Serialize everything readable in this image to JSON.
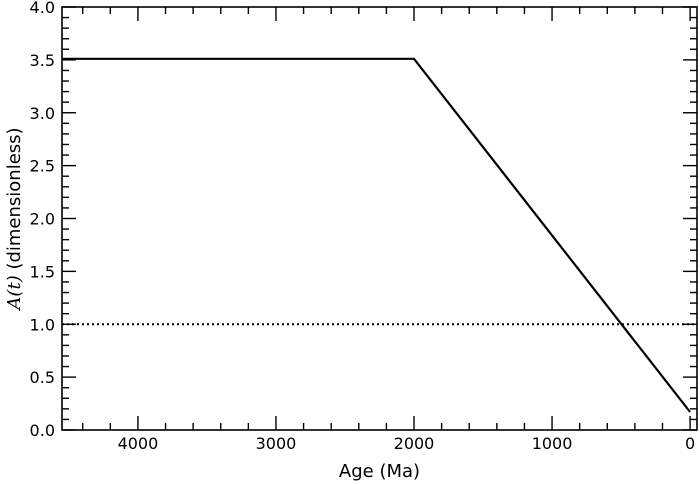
{
  "chart_data": {
    "type": "line",
    "title": "",
    "xlabel": "Age (Ma)",
    "ylabel_math": "A(t)",
    "ylabel_rest": " (dimensionless)",
    "xlim": [
      4550,
      -50
    ],
    "ylim": [
      0.0,
      4.0
    ],
    "x_inverted": true,
    "x_major_ticks": [
      4000,
      3000,
      2000,
      1000,
      0
    ],
    "x_tick_labels": [
      "4000",
      "3000",
      "2000",
      "1000",
      "0"
    ],
    "y_major_ticks": [
      0.0,
      0.5,
      1.0,
      1.5,
      2.0,
      2.5,
      3.0,
      3.5,
      4.0
    ],
    "y_tick_labels": [
      "0.0",
      "0.5",
      "1.0",
      "1.5",
      "2.0",
      "2.5",
      "3.0",
      "3.5",
      "4.0"
    ],
    "grid": false,
    "series": [
      {
        "style": "solid",
        "color": "#000000",
        "x": [
          4550,
          2000,
          0
        ],
        "y": [
          3.51,
          3.51,
          0.17
        ]
      },
      {
        "style": "dotted",
        "color": "#000000",
        "x": [
          4550,
          -50
        ],
        "y": [
          1.0,
          1.0
        ]
      }
    ]
  }
}
